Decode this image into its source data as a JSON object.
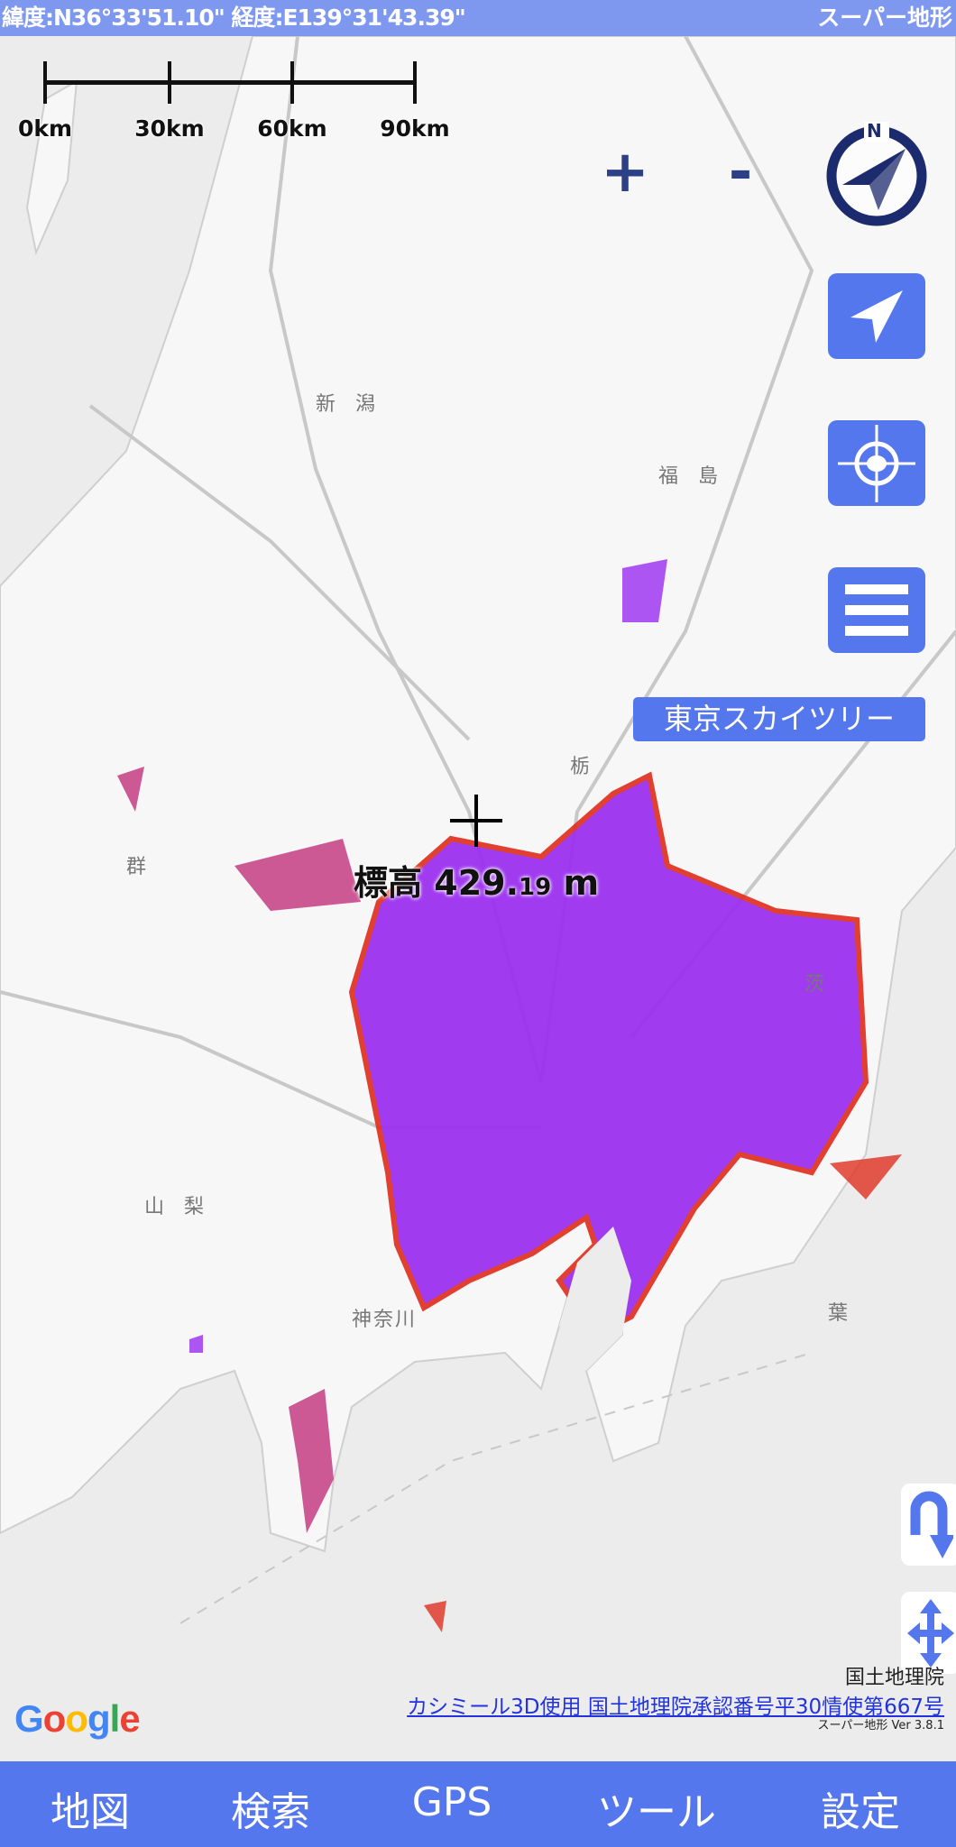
{
  "header": {
    "coordinates": "緯度:N36°33'51.10\" 経度:E139°31'43.39\"",
    "app_name": "スーパー地形"
  },
  "scale_bar": {
    "labels": [
      "0km",
      "30km",
      "60km",
      "90km"
    ]
  },
  "zoom": {
    "in_label": "+",
    "out_label": "-"
  },
  "compass": {
    "north_label": "N"
  },
  "landmark_label": "東京スカイツリー",
  "elevation": {
    "prefix": "標高",
    "integer": "429.",
    "decimal": "19",
    "unit": "m"
  },
  "map": {
    "labels": [
      "新潟",
      "福島",
      "群",
      "栃",
      "茨",
      "山梨",
      "神奈川",
      "葉"
    ],
    "colors": {
      "sea": "#ececec",
      "land": "#f7f7f7",
      "highlight": "#9a2cf0",
      "edge": "#e03020"
    }
  },
  "attribution": {
    "google": "Google",
    "gsi": "国土地理院",
    "license_link": "カシミール3D使用 国土地理院承認番号平30情使第667号",
    "version": "スーパー地形 Ver 3.8.1"
  },
  "tabs": [
    {
      "label": "地図"
    },
    {
      "label": "検索"
    },
    {
      "label": "GPS"
    },
    {
      "label": "ツール"
    },
    {
      "label": "設定"
    }
  ],
  "colors": {
    "accent": "#5577ee",
    "compass": "#1c2a6e"
  }
}
